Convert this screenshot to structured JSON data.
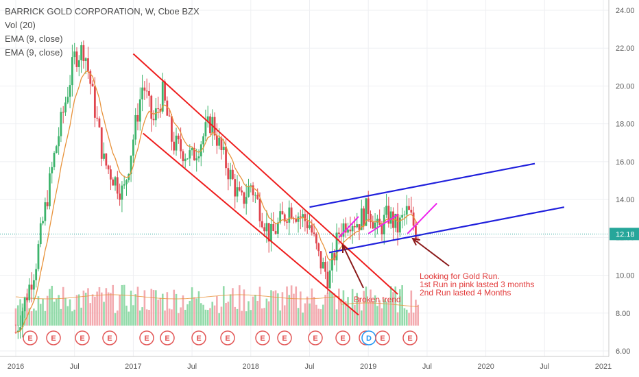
{
  "legend": {
    "title": "BARRICK GOLD CORPORATION, W, Cboe BZX",
    "vol": "Vol (20)",
    "ema1": "EMA (9, close)",
    "ema2": "EMA (9, close)"
  },
  "price_label": "12.18",
  "colors": {
    "up": "#3cb36b",
    "down": "#e0454e",
    "up_vol": "#7fd39a",
    "down_vol": "#f19ba1",
    "ema": "#e8923a",
    "channel": "#ee1c1c",
    "blue_channel": "#1f1fdc",
    "pink": "#ee22ee",
    "annotation": "#e23b3b",
    "arrow": "#8b1a1a",
    "price_tag": "#26a69a"
  },
  "chart_data": {
    "type": "candlestick",
    "symbol": "BARRICK GOLD CORPORATION",
    "interval": "W",
    "exchange": "Cboe BZX",
    "y_axis": {
      "ticks": [
        "24.00",
        "22.00",
        "20.00",
        "18.00",
        "16.00",
        "14.00",
        "12.00",
        "10.00",
        "8.00",
        "6.00"
      ],
      "range": [
        6,
        24
      ]
    },
    "x_axis": {
      "ticks": [
        "2016",
        "Jul",
        "2017",
        "Jul",
        "2018",
        "Jul",
        "2019",
        "Jul",
        "2020",
        "Jul",
        "2021"
      ]
    },
    "last_price": 12.18,
    "trend_anchors": [
      {
        "date": "2016-01",
        "close": 7.0
      },
      {
        "date": "2016-03",
        "close": 10.5
      },
      {
        "date": "2016-05",
        "close": 16.5
      },
      {
        "date": "2016-07",
        "close": 21.5
      },
      {
        "date": "2016-08",
        "close": 22.0
      },
      {
        "date": "2016-10",
        "close": 16.0
      },
      {
        "date": "2016-12",
        "close": 14.3
      },
      {
        "date": "2017-02",
        "close": 20.2
      },
      {
        "date": "2017-03",
        "close": 18.0
      },
      {
        "date": "2017-04",
        "close": 19.6
      },
      {
        "date": "2017-05",
        "close": 17.0
      },
      {
        "date": "2017-07",
        "close": 16.2
      },
      {
        "date": "2017-09",
        "close": 18.2
      },
      {
        "date": "2017-10",
        "close": 16.5
      },
      {
        "date": "2017-12",
        "close": 13.8
      },
      {
        "date": "2018-01",
        "close": 14.8
      },
      {
        "date": "2018-03",
        "close": 12.0
      },
      {
        "date": "2018-05",
        "close": 13.6
      },
      {
        "date": "2018-07",
        "close": 12.7
      },
      {
        "date": "2018-08",
        "close": 10.8
      },
      {
        "date": "2018-09",
        "close": 9.8
      },
      {
        "date": "2018-10",
        "close": 12.3
      },
      {
        "date": "2018-11",
        "close": 13.0
      },
      {
        "date": "2018-12",
        "close": 12.8
      },
      {
        "date": "2019-01",
        "close": 13.6
      },
      {
        "date": "2019-02",
        "close": 12.3
      },
      {
        "date": "2019-03",
        "close": 13.2
      },
      {
        "date": "2019-04",
        "close": 12.5
      },
      {
        "date": "2019-05",
        "close": 13.4
      },
      {
        "date": "2019-06",
        "close": 12.2
      }
    ],
    "drawings": {
      "red_channel_upper": [
        {
          "date": "2017-01",
          "price": 21.7
        },
        {
          "date": "2019-04",
          "price": 9.0
        }
      ],
      "red_channel_lower": [
        {
          "date": "2017-02",
          "price": 17.5
        },
        {
          "date": "2018-12",
          "price": 7.9
        }
      ],
      "blue_channel_upper": [
        {
          "date": "2018-07",
          "price": 13.6
        },
        {
          "date": "2020-06",
          "price": 15.9
        }
      ],
      "blue_channel_lower": [
        {
          "date": "2018-09",
          "price": 11.2
        },
        {
          "date": "2020-09",
          "price": 13.6
        }
      ],
      "pink_runs": [
        [
          {
            "date": "2018-10",
            "price": 12.0
          },
          {
            "date": "2018-12",
            "price": 13.1
          }
        ],
        [
          {
            "date": "2019-01",
            "price": 12.2
          },
          {
            "date": "2019-04",
            "price": 13.2
          }
        ],
        [
          {
            "date": "2019-05",
            "price": 12.2
          },
          {
            "date": "2019-08",
            "price": 13.8
          }
        ]
      ]
    },
    "earnings_markers": [
      "E",
      "E",
      "E",
      "E",
      "E",
      "E",
      "E",
      "E",
      "E",
      "E",
      "E",
      "E",
      "E",
      "D",
      "E",
      "E"
    ],
    "annotations": {
      "broken_trend": "Broken trend",
      "note_line1": "Looking for Gold Run.",
      "note_line2": "1st Run in pink lasted 3 months",
      "note_line3": "2nd Run lasted 4 Months"
    }
  }
}
